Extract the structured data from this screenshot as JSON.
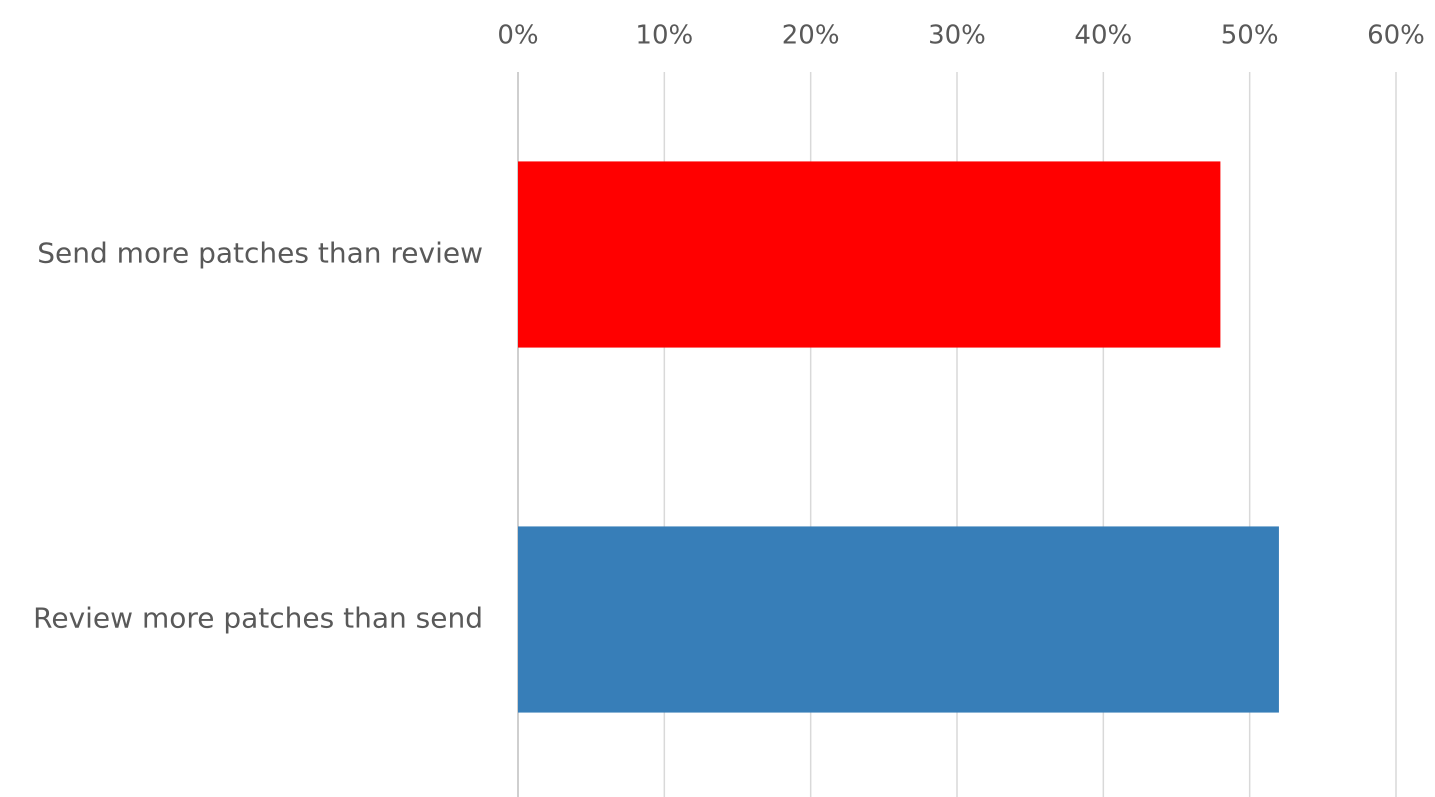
{
  "chart_data": {
    "type": "bar",
    "orientation": "horizontal",
    "title": "",
    "xlabel": "",
    "ylabel": "",
    "categories": [
      "Send more patches than review",
      "Review more patches than send"
    ],
    "values": [
      0.48,
      0.52
    ],
    "colors": [
      "#ff0000",
      "#377eb8"
    ],
    "xlim": [
      0,
      0.6
    ],
    "x_ticks": [
      0,
      0.1,
      0.2,
      0.3,
      0.4,
      0.5,
      0.6
    ],
    "x_tick_labels": [
      "0%",
      "10%",
      "20%",
      "30%",
      "40%",
      "50%",
      "60%"
    ],
    "x_axis_position": "top",
    "grid": true,
    "legend": "none"
  }
}
